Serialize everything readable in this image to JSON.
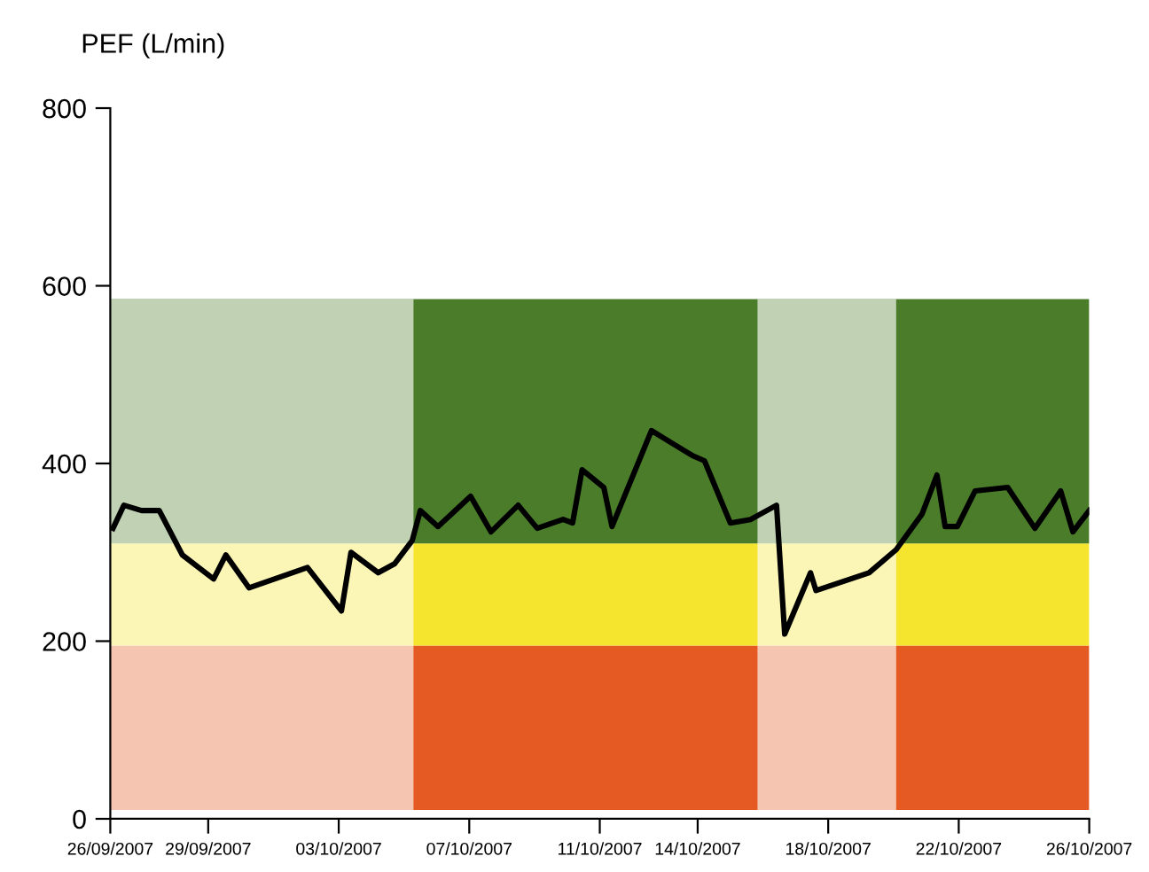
{
  "chart_data": {
    "type": "line",
    "ylabel": "PEF (L/min)",
    "x": [
      "2007-09-26T02:00",
      "2007-09-26T10:00",
      "2007-09-26T23:00",
      "2007-09-27T12:00",
      "2007-09-28T05:00",
      "2007-09-29T04:00",
      "2007-09-29T13:00",
      "2007-09-30T06:00",
      "2007-10-02T01:00",
      "2007-10-03T02:00",
      "2007-10-03T09:00",
      "2007-10-04T05:00",
      "2007-10-04T17:00",
      "2007-10-05T06:00",
      "2007-10-05T12:00",
      "2007-10-06T01:00",
      "2007-10-07T01:00",
      "2007-10-07T16:00",
      "2007-10-08T12:00",
      "2007-10-09T02:00",
      "2007-10-09T21:00",
      "2007-10-10T04:00",
      "2007-10-10T11:00",
      "2007-10-11T03:00",
      "2007-10-11T09:00",
      "2007-10-12T14:00",
      "2007-10-13T20:00",
      "2007-10-14T05:00",
      "2007-10-15T00:00",
      "2007-10-15T15:00",
      "2007-10-16T10:00",
      "2007-10-16T16:00",
      "2007-10-17T11:00",
      "2007-10-17T15:00",
      "2007-10-19T06:00",
      "2007-10-20T02:00",
      "2007-10-20T21:00",
      "2007-10-21T08:00",
      "2007-10-21T14:00",
      "2007-10-21T23:00",
      "2007-10-22T12:00",
      "2007-10-23T12:00",
      "2007-10-24T08:00",
      "2007-10-25T03:00",
      "2007-10-25T12:00",
      "2007-10-26T00:00"
    ],
    "series": [
      {
        "color": "#000000",
        "values": [
          327,
          353,
          347,
          347,
          297,
          270,
          297,
          260,
          283,
          234,
          300,
          277,
          287,
          313,
          347,
          329,
          363,
          323,
          353,
          327,
          337,
          333,
          393,
          373,
          329,
          437,
          409,
          403,
          333,
          337,
          353,
          208,
          277,
          257,
          277,
          303,
          343,
          387,
          329,
          329,
          369,
          373,
          327,
          369,
          323,
          347
        ]
      }
    ],
    "xlim": [
      "2007-09-26",
      "2007-10-26"
    ],
    "xticks": [
      {
        "value": "2007-09-26",
        "label": "26/09/2007"
      },
      {
        "value": "2007-09-29",
        "label": "29/09/2007"
      },
      {
        "value": "2007-10-03",
        "label": "03/10/2007"
      },
      {
        "value": "2007-10-07",
        "label": "07/10/2007"
      },
      {
        "value": "2007-10-11",
        "label": "11/10/2007"
      },
      {
        "value": "2007-10-14",
        "label": "14/10/2007"
      },
      {
        "value": "2007-10-18",
        "label": "18/10/2007"
      },
      {
        "value": "2007-10-22",
        "label": "22/10/2007"
      },
      {
        "value": "2007-10-26",
        "label": "26/10/2007"
      }
    ],
    "ylim": [
      0,
      800
    ],
    "yticks": [
      0,
      200,
      400,
      600,
      800
    ],
    "bands": [
      {
        "axis": "y",
        "from": 10,
        "to": 195,
        "color": "#e55a22"
      },
      {
        "axis": "y",
        "from": 195,
        "to": 310,
        "color": "#f5e52e"
      },
      {
        "axis": "y",
        "from": 310,
        "to": 585,
        "color": "#4a7c2a"
      },
      {
        "axis": "x",
        "from": "2007-09-26",
        "to": "2007-10-05T07:00",
        "color": "#ffffff"
      },
      {
        "axis": "x",
        "from": "2007-10-15T20:00",
        "to": "2007-10-20T02:00",
        "color": "#ffffff"
      }
    ],
    "grid": false,
    "legend": false,
    "marker": "none",
    "line_style": "solid"
  }
}
